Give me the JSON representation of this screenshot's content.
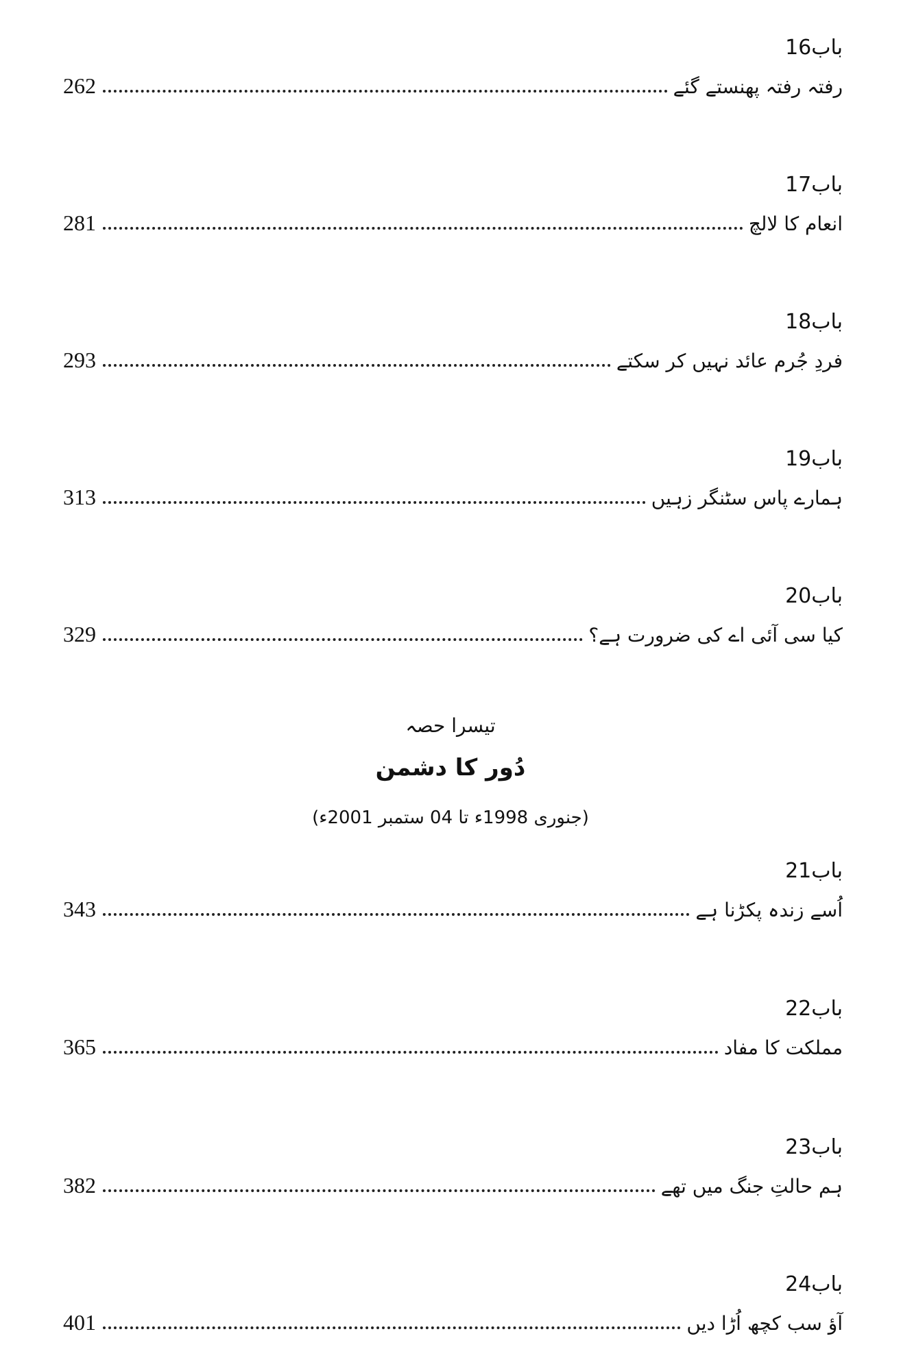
{
  "entries_part2": [
    {
      "label": "باب16",
      "title": "رفتہ رفتہ پھنستے گئے",
      "page": "262"
    },
    {
      "label": "باب17",
      "title": "انعام کا لالچ",
      "page": "281"
    },
    {
      "label": "باب18",
      "title": "فردِ جُرم عائد نہیں کر سکتے",
      "page": "293"
    },
    {
      "label": "باب19",
      "title": "ہمارے پاس سٹنگر زہیں",
      "page": "313"
    },
    {
      "label": "باب20",
      "title": "کیا سی آئی اے کی ضرورت ہے؟",
      "page": "329"
    }
  ],
  "section": {
    "part": "تیسرا حصہ",
    "title": "دُور کا دشمن",
    "dates": "(جنوری 1998ء تا 04 ستمبر 2001ء)"
  },
  "entries_part3": [
    {
      "label": "باب21",
      "title": "اُسے زندہ پکڑنا ہے",
      "page": "343"
    },
    {
      "label": "باب22",
      "title": "مملکت کا مفاد",
      "page": "365"
    },
    {
      "label": "باب23",
      "title": "ہم حالتِ جنگ میں تھے",
      "page": "382"
    },
    {
      "label": "باب24",
      "title": "آؤ سب کچھ اُڑا دیں",
      "page": "401"
    }
  ]
}
